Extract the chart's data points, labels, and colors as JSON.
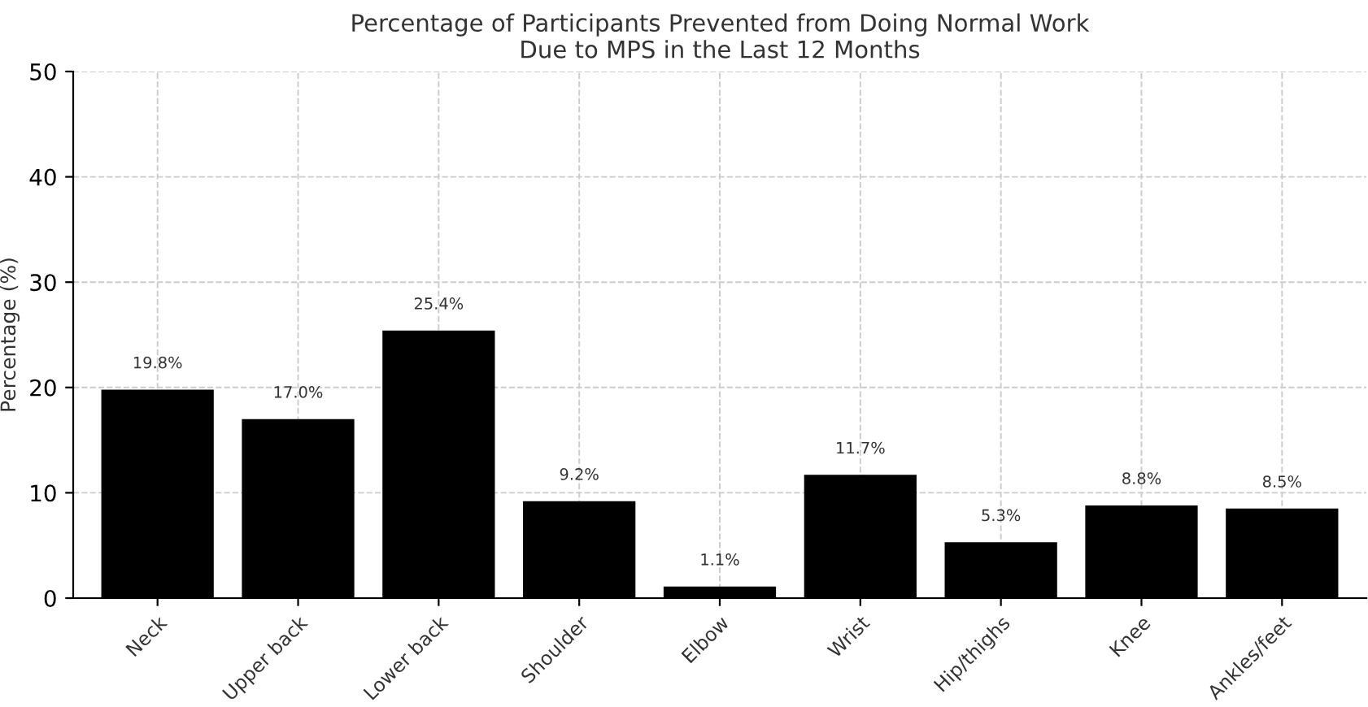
{
  "chart_data": {
    "type": "bar",
    "title": "Percentage of Participants Prevented from Doing Normal Work\nDue to MPS in the Last 12 Months",
    "ylabel": "Percentage (%)",
    "categories": [
      "Neck",
      "Upper back",
      "Lower back",
      "Shoulder",
      "Elbow",
      "Wrist",
      "Hip/thighs",
      "Knee",
      "Ankles/feet"
    ],
    "values": [
      19.8,
      17.0,
      25.4,
      9.2,
      1.1,
      11.7,
      5.3,
      8.8,
      8.5
    ],
    "value_labels": [
      "19.8%",
      "17.0%",
      "25.4%",
      "9.2%",
      "1.1%",
      "11.7%",
      "5.3%",
      "8.8%",
      "8.5%"
    ],
    "color": "#000000",
    "ylim": [
      0,
      50
    ],
    "yticks": [
      0,
      10,
      20,
      30,
      40,
      50
    ],
    "grid": true
  }
}
